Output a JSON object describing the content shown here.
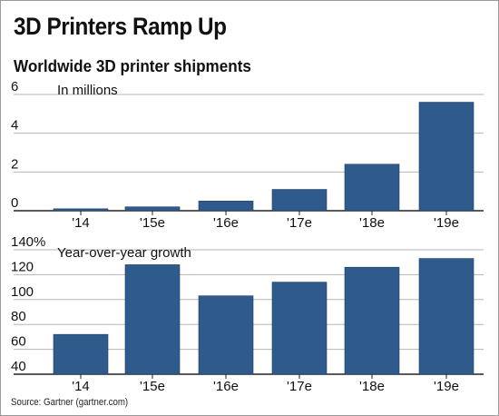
{
  "header": {
    "title": "3D Printers Ramp Up",
    "subtitle": "Worldwide 3D printer shipments"
  },
  "footer": {
    "source": "Source: Gartner (gartner.com)"
  },
  "colors": {
    "bar": "#2e5b8c",
    "gridline": "#b5b5b5",
    "axis": "#222222"
  },
  "chart_data": [
    {
      "type": "bar",
      "title": "In millions",
      "categories": [
        "'14",
        "'15e",
        "'16e",
        "'17e",
        "'18e",
        "'19e"
      ],
      "values": [
        0.1,
        0.2,
        0.5,
        1.1,
        2.4,
        5.6
      ],
      "ylim": [
        0,
        6
      ],
      "yticks": [
        0,
        2,
        4,
        6
      ],
      "ytick_labels": [
        "0",
        "2",
        "4",
        "6"
      ],
      "grid": true
    },
    {
      "type": "bar",
      "title": "Year-over-year growth",
      "categories": [
        "'14",
        "'15e",
        "'16e",
        "'17e",
        "'18e",
        "'19e"
      ],
      "values": [
        72,
        128,
        103,
        114,
        126,
        133
      ],
      "ylim": [
        40,
        140
      ],
      "yticks": [
        40,
        60,
        80,
        100,
        120,
        140
      ],
      "ytick_labels": [
        "40",
        "60",
        "80",
        "100",
        "120",
        "140%"
      ],
      "grid": true
    }
  ]
}
